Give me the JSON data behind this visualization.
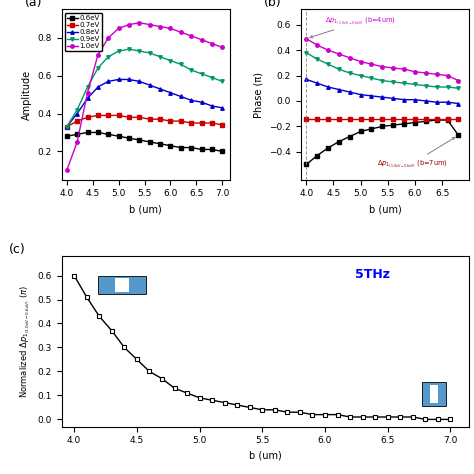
{
  "panel_a": {
    "xlabel": "b (um)",
    "ylabel": "Amplitude",
    "xlim": [
      3.9,
      7.15
    ],
    "ylim": [
      0.05,
      0.95
    ],
    "yticks": [
      0.2,
      0.4,
      0.6,
      0.8
    ],
    "xticks": [
      4.0,
      4.5,
      5.0,
      5.5,
      6.0,
      6.5,
      7.0
    ],
    "series": [
      {
        "label": "0.6eV",
        "color": "#000000",
        "marker": "s",
        "x": [
          4.0,
          4.2,
          4.4,
          4.6,
          4.8,
          5.0,
          5.2,
          5.4,
          5.6,
          5.8,
          6.0,
          6.2,
          6.4,
          6.6,
          6.8,
          7.0
        ],
        "y": [
          0.28,
          0.29,
          0.3,
          0.3,
          0.29,
          0.28,
          0.27,
          0.26,
          0.25,
          0.24,
          0.23,
          0.22,
          0.22,
          0.21,
          0.21,
          0.2
        ]
      },
      {
        "label": "0.7eV",
        "color": "#cc0000",
        "marker": "s",
        "x": [
          4.0,
          4.2,
          4.4,
          4.6,
          4.8,
          5.0,
          5.2,
          5.4,
          5.6,
          5.8,
          6.0,
          6.2,
          6.4,
          6.6,
          6.8,
          7.0
        ],
        "y": [
          0.33,
          0.36,
          0.38,
          0.39,
          0.39,
          0.39,
          0.38,
          0.38,
          0.37,
          0.37,
          0.36,
          0.36,
          0.35,
          0.35,
          0.35,
          0.34
        ]
      },
      {
        "label": "0.8eV",
        "color": "#0000cc",
        "marker": "^",
        "x": [
          4.0,
          4.2,
          4.4,
          4.6,
          4.8,
          5.0,
          5.2,
          5.4,
          5.6,
          5.8,
          6.0,
          6.2,
          6.4,
          6.6,
          6.8,
          7.0
        ],
        "y": [
          0.33,
          0.4,
          0.48,
          0.54,
          0.57,
          0.58,
          0.58,
          0.57,
          0.55,
          0.53,
          0.51,
          0.49,
          0.47,
          0.46,
          0.44,
          0.43
        ]
      },
      {
        "label": "0.9eV",
        "color": "#009966",
        "marker": "v",
        "x": [
          4.0,
          4.2,
          4.4,
          4.6,
          4.8,
          5.0,
          5.2,
          5.4,
          5.6,
          5.8,
          6.0,
          6.2,
          6.4,
          6.6,
          6.8,
          7.0
        ],
        "y": [
          0.33,
          0.42,
          0.54,
          0.64,
          0.7,
          0.73,
          0.74,
          0.73,
          0.72,
          0.7,
          0.68,
          0.66,
          0.63,
          0.61,
          0.59,
          0.57
        ]
      },
      {
        "label": "1.0eV",
        "color": "#cc00cc",
        "marker": "o",
        "x": [
          4.0,
          4.2,
          4.4,
          4.6,
          4.8,
          5.0,
          5.2,
          5.4,
          5.6,
          5.8,
          6.0,
          6.2,
          6.4,
          6.6,
          6.8,
          7.0
        ],
        "y": [
          0.1,
          0.25,
          0.51,
          0.71,
          0.8,
          0.85,
          0.87,
          0.88,
          0.87,
          0.86,
          0.85,
          0.83,
          0.81,
          0.79,
          0.77,
          0.75
        ]
      }
    ]
  },
  "panel_b": {
    "xlabel": "b (um)",
    "ylabel": "Phase (π)",
    "xlim": [
      3.9,
      7.0
    ],
    "ylim": [
      -0.62,
      0.72
    ],
    "yticks": [
      -0.4,
      -0.2,
      0.0,
      0.2,
      0.4,
      0.6
    ],
    "xticks": [
      4.0,
      4.5,
      5.0,
      5.5,
      6.0,
      6.5
    ],
    "series": [
      {
        "label": "0.6eV",
        "color": "#000000",
        "marker": "s",
        "x": [
          4.0,
          4.2,
          4.4,
          4.6,
          4.8,
          5.0,
          5.2,
          5.4,
          5.6,
          5.8,
          6.0,
          6.2,
          6.4,
          6.6,
          6.8
        ],
        "y": [
          -0.5,
          -0.43,
          -0.37,
          -0.32,
          -0.28,
          -0.24,
          -0.22,
          -0.2,
          -0.19,
          -0.18,
          -0.17,
          -0.16,
          -0.15,
          -0.15,
          -0.27
        ]
      },
      {
        "label": "0.7eV",
        "color": "#cc0000",
        "marker": "s",
        "x": [
          4.0,
          4.2,
          4.4,
          4.6,
          4.8,
          5.0,
          5.2,
          5.4,
          5.6,
          5.8,
          6.0,
          6.2,
          6.4,
          6.6,
          6.8
        ],
        "y": [
          -0.14,
          -0.14,
          -0.14,
          -0.14,
          -0.14,
          -0.14,
          -0.14,
          -0.14,
          -0.14,
          -0.14,
          -0.14,
          -0.14,
          -0.14,
          -0.14,
          -0.14
        ]
      },
      {
        "label": "0.8eV",
        "color": "#0000cc",
        "marker": "^",
        "x": [
          4.0,
          4.2,
          4.4,
          4.6,
          4.8,
          5.0,
          5.2,
          5.4,
          5.6,
          5.8,
          6.0,
          6.2,
          6.4,
          6.6,
          6.8
        ],
        "y": [
          0.17,
          0.14,
          0.11,
          0.09,
          0.07,
          0.05,
          0.04,
          0.03,
          0.02,
          0.01,
          0.01,
          0.0,
          -0.01,
          -0.01,
          -0.02
        ]
      },
      {
        "label": "0.9eV",
        "color": "#009966",
        "marker": "v",
        "x": [
          4.0,
          4.2,
          4.4,
          4.6,
          4.8,
          5.0,
          5.2,
          5.4,
          5.6,
          5.8,
          6.0,
          6.2,
          6.4,
          6.6,
          6.8
        ],
        "y": [
          0.38,
          0.33,
          0.29,
          0.25,
          0.22,
          0.2,
          0.18,
          0.16,
          0.15,
          0.14,
          0.13,
          0.12,
          0.11,
          0.11,
          0.1
        ]
      },
      {
        "label": "1.0eV",
        "color": "#cc00cc",
        "marker": "o",
        "x": [
          4.0,
          4.2,
          4.4,
          4.6,
          4.8,
          5.0,
          5.2,
          5.4,
          5.6,
          5.8,
          6.0,
          6.2,
          6.4,
          6.6,
          6.8
        ],
        "y": [
          0.49,
          0.44,
          0.4,
          0.37,
          0.34,
          0.31,
          0.29,
          0.27,
          0.26,
          0.25,
          0.23,
          0.22,
          0.21,
          0.2,
          0.16
        ]
      }
    ]
  },
  "panel_c": {
    "xlabel": "b (um)",
    "xlim": [
      3.9,
      7.15
    ],
    "ylim": [
      -0.03,
      0.68
    ],
    "yticks": [
      0.0,
      0.1,
      0.2,
      0.3,
      0.4,
      0.5,
      0.6
    ],
    "xticks": [
      4.0,
      4.5,
      5.0,
      5.5,
      6.0,
      6.5,
      7.0
    ],
    "label_5THz": "5THz",
    "x": [
      4.0,
      4.1,
      4.2,
      4.3,
      4.4,
      4.5,
      4.6,
      4.7,
      4.8,
      4.9,
      5.0,
      5.1,
      5.2,
      5.3,
      5.4,
      5.5,
      5.6,
      5.7,
      5.8,
      5.9,
      6.0,
      6.1,
      6.2,
      6.3,
      6.4,
      6.5,
      6.6,
      6.7,
      6.8,
      6.9,
      7.0
    ],
    "y": [
      0.6,
      0.51,
      0.43,
      0.37,
      0.3,
      0.25,
      0.2,
      0.17,
      0.13,
      0.11,
      0.09,
      0.08,
      0.07,
      0.06,
      0.05,
      0.04,
      0.04,
      0.03,
      0.03,
      0.02,
      0.02,
      0.02,
      0.01,
      0.01,
      0.01,
      0.01,
      0.01,
      0.01,
      0.0,
      0.0,
      0.0
    ]
  }
}
